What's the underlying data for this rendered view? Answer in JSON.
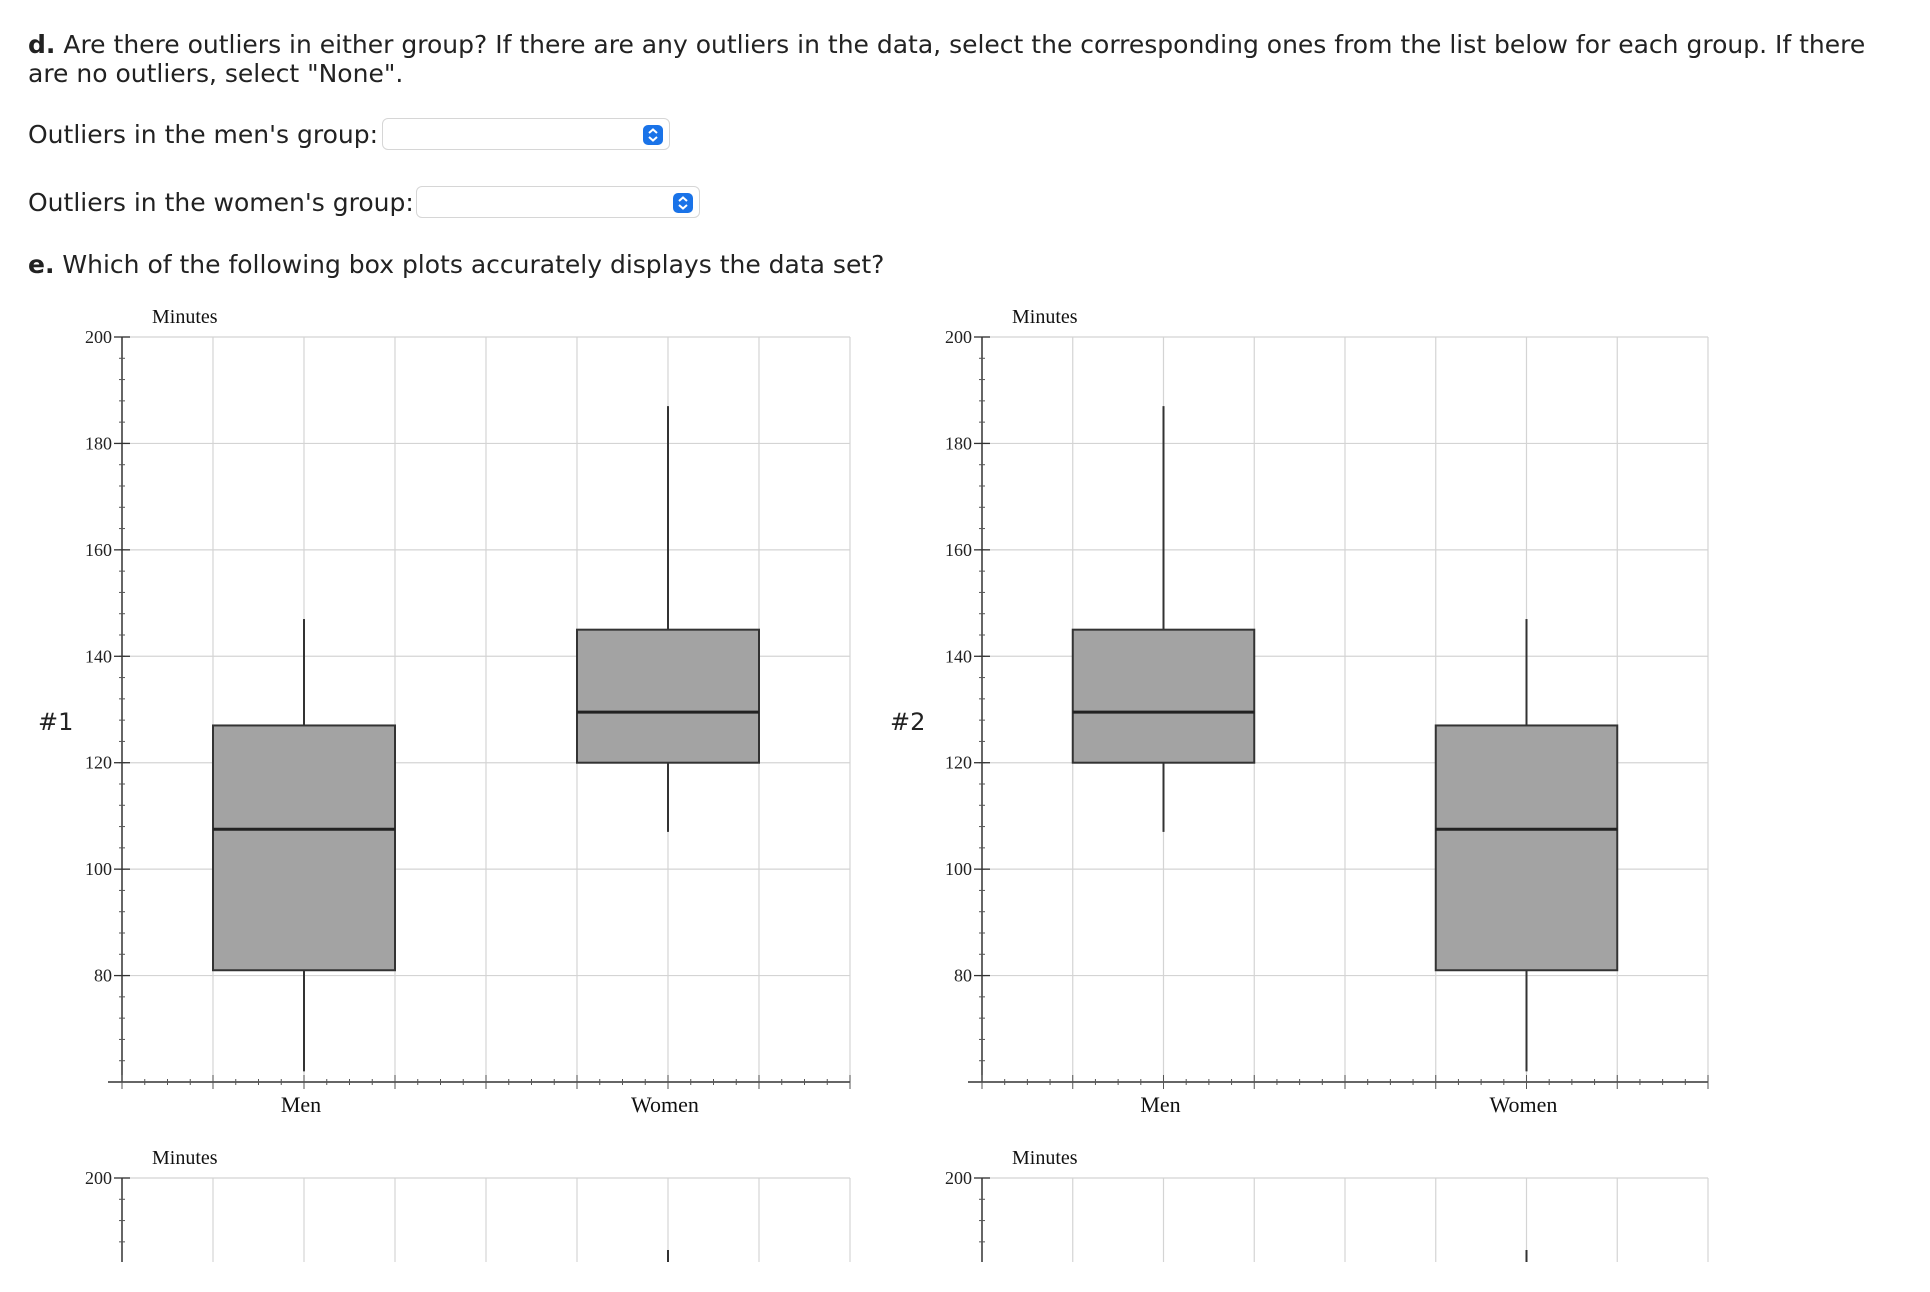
{
  "question_d": {
    "prefix": "d.",
    "text": " Are there outliers in either group? If there are any outliers in the data, select the corresponding ones from the list below for each group. If there are no outliers, select \"None\"."
  },
  "outliers": {
    "men_label": "Outliers in the men's group:",
    "women_label": "Outliers in the women's group:",
    "men_value": "",
    "women_value": ""
  },
  "question_e": {
    "prefix": "e.",
    "text": " Which of the following box plots accurately displays the data set?"
  },
  "colors": {
    "box_fill": "#a3a3a3",
    "select_button": "#1a73e8"
  },
  "chart_data": [
    {
      "type": "box",
      "label": "#1",
      "ylabel": "Minutes",
      "yticks": [
        80,
        100,
        120,
        140,
        160,
        180,
        200
      ],
      "ylim": [
        60,
        200
      ],
      "categories": [
        "Men",
        "Women"
      ],
      "boxes": [
        {
          "category": "Men",
          "min": 62,
          "q1": 81,
          "median": 107.5,
          "q3": 127,
          "max": 147
        },
        {
          "category": "Women",
          "min": 107,
          "q1": 120,
          "median": 129.5,
          "q3": 145,
          "max": 187
        }
      ]
    },
    {
      "type": "box",
      "label": "#2",
      "ylabel": "Minutes",
      "yticks": [
        80,
        100,
        120,
        140,
        160,
        180,
        200
      ],
      "ylim": [
        60,
        200
      ],
      "categories": [
        "Men",
        "Women"
      ],
      "boxes": [
        {
          "category": "Men",
          "min": 107,
          "q1": 120,
          "median": 129.5,
          "q3": 145,
          "max": 187
        },
        {
          "category": "Women",
          "min": 62,
          "q1": 81,
          "median": 107.5,
          "q3": 127,
          "max": 147
        }
      ]
    },
    {
      "type": "box",
      "ylabel": "Minutes",
      "yticks": [
        200
      ],
      "partial": true
    },
    {
      "type": "box",
      "ylabel": "Minutes",
      "yticks": [
        200
      ],
      "partial": true
    }
  ]
}
